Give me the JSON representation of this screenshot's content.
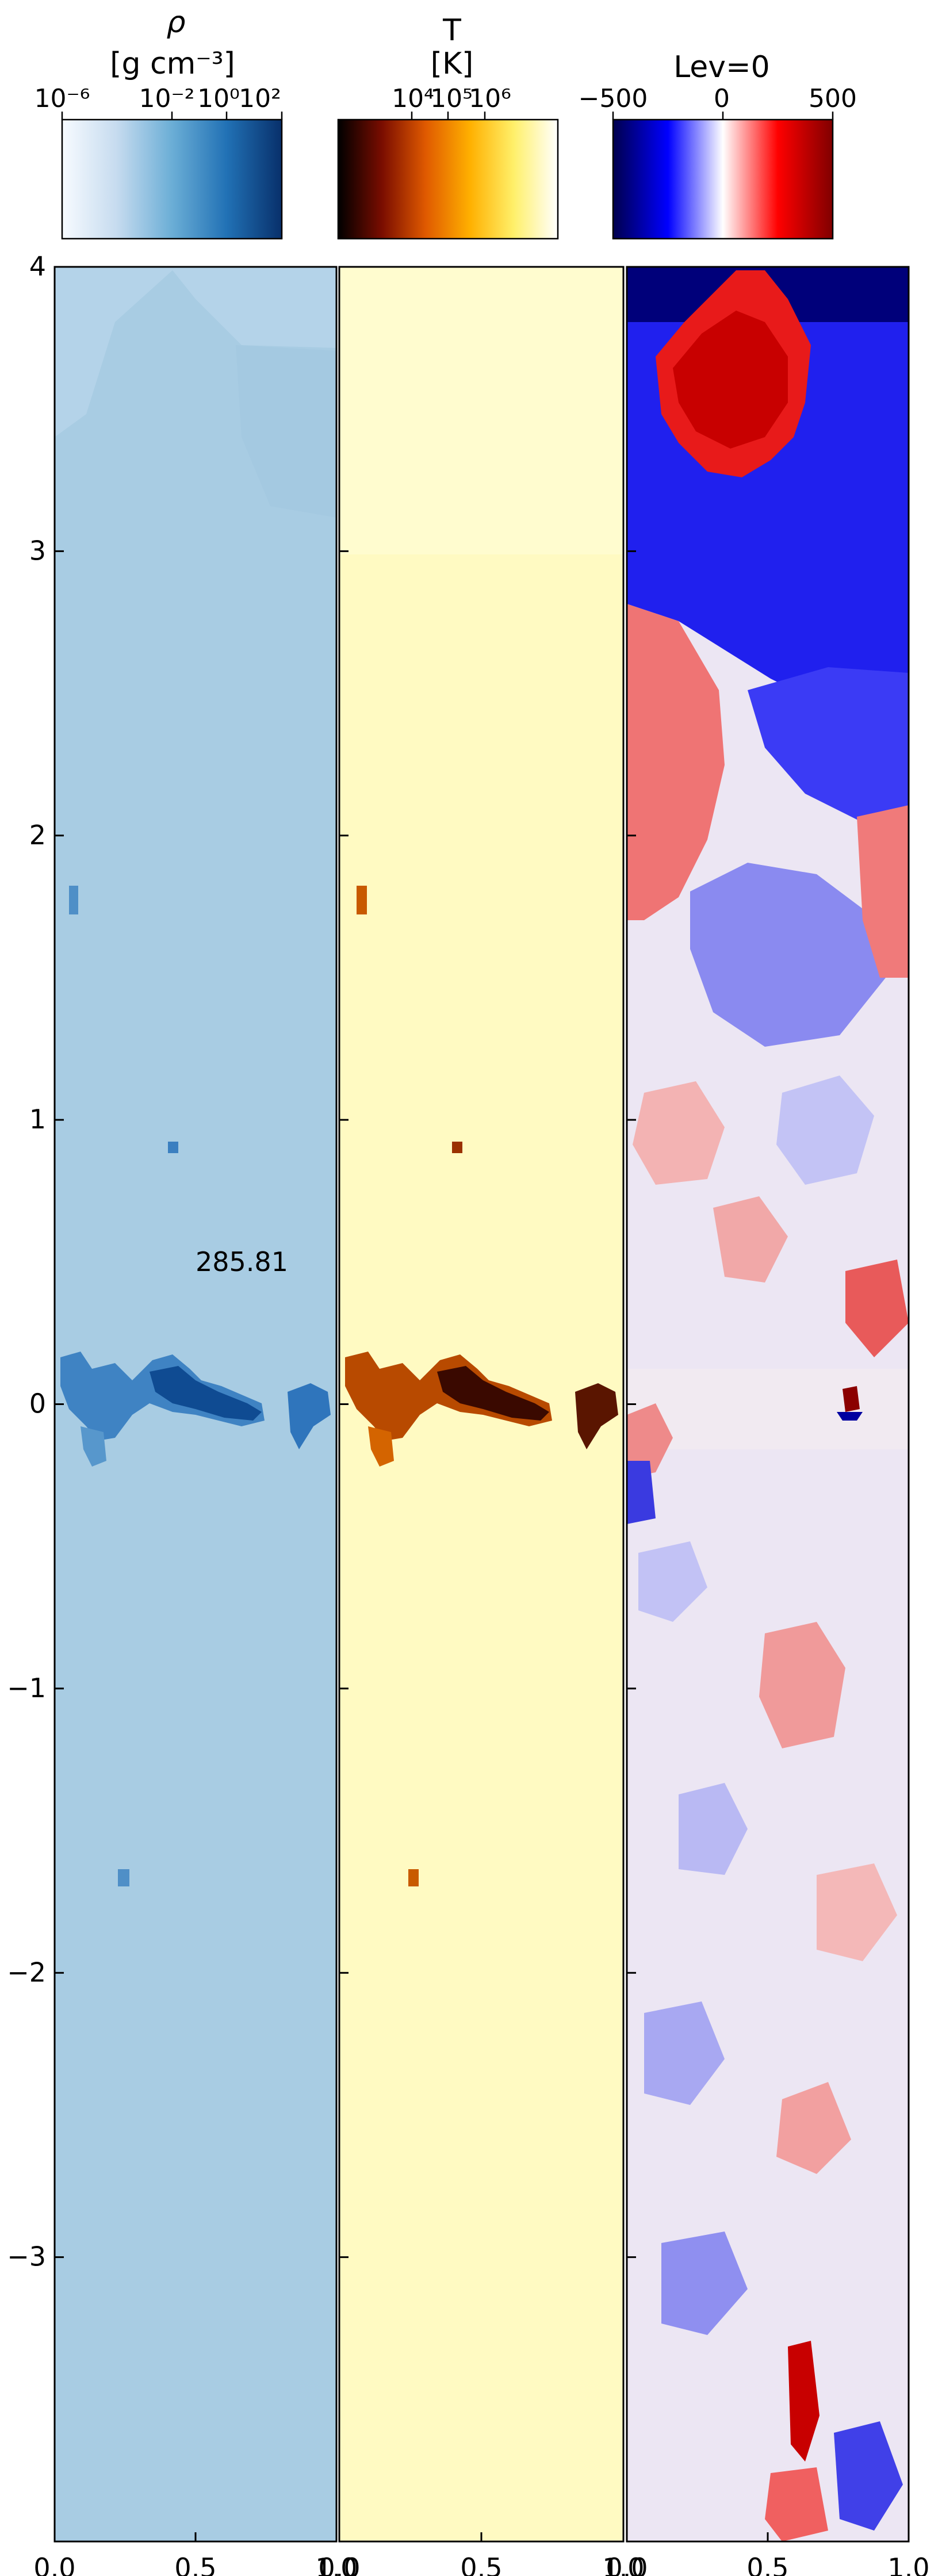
{
  "colorbars": [
    {
      "label_line1": "ρ",
      "label_line2": "[g cm⁻³]",
      "scale": "log",
      "tick_labels": [
        "10⁻⁶",
        "10⁻²",
        "10⁰",
        "10²"
      ],
      "tick_values": [
        -6,
        -2,
        0,
        2
      ],
      "range": [
        -6,
        2
      ],
      "colormap": "Blues",
      "colors": [
        "#f7fbff",
        "#c6dbef",
        "#6baed6",
        "#2171b5",
        "#08306b"
      ]
    },
    {
      "label_line1": "T",
      "label_line2": "[K]",
      "scale": "log",
      "tick_labels": [
        "10⁴",
        "10⁵",
        "10⁶"
      ],
      "tick_values": [
        4,
        5,
        6
      ],
      "range": [
        2,
        8
      ],
      "colormap": "afmhot",
      "colors": [
        "#000000",
        "#7a0d00",
        "#e05a00",
        "#ffb000",
        "#fff06a",
        "#ffffff"
      ]
    },
    {
      "label_line1": "Lev=0",
      "label_line2": "",
      "scale": "linear",
      "tick_labels": [
        "−500",
        "0",
        "500"
      ],
      "tick_values": [
        -500,
        0,
        500
      ],
      "range": [
        -500,
        500
      ],
      "colormap": "seismic",
      "colors": [
        "#00004d",
        "#0000ff",
        "#ffffff",
        "#ff0000",
        "#800000"
      ]
    }
  ],
  "annotation": {
    "text": "285.81"
  },
  "panel_colors": {
    "density_background": "#a9cce3",
    "density_dense": "#1a5ba6",
    "temperature_background": "#fffac4",
    "temperature_cool": "#5c1d00",
    "velocity_positive": "#e84040",
    "velocity_negative": "#2b2bd9"
  },
  "chart_data": [
    {
      "type": "heatmap",
      "name": "density",
      "xlim": [
        0.0,
        1.0
      ],
      "ylim": [
        -4.0,
        4.0
      ],
      "x_tick_labels": [
        "0.0",
        "0.5",
        "1.0"
      ],
      "y_tick_labels": [
        "4",
        "3",
        "2",
        "1",
        "0",
        "−1",
        "−2",
        "−3"
      ],
      "y_tick_values": [
        4,
        3,
        2,
        1,
        0,
        -1,
        -2,
        -3
      ]
    },
    {
      "type": "heatmap",
      "name": "temperature",
      "xlim": [
        0.0,
        1.0
      ],
      "ylim": [
        -4.0,
        4.0
      ],
      "x_tick_labels": [
        "0.0",
        "0.5",
        "1.0"
      ]
    },
    {
      "type": "heatmap",
      "name": "velocity",
      "xlim": [
        0.0,
        1.0
      ],
      "ylim": [
        -4.0,
        4.0
      ],
      "x_tick_labels": [
        "0.0",
        "0.5",
        "1.0"
      ]
    }
  ]
}
